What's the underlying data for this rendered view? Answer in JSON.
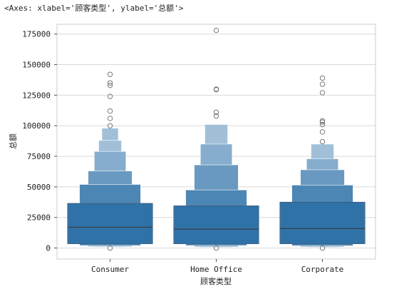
{
  "output_repr": "<Axes: xlabel='顾客类型', ylabel='总额'>",
  "chart_data": {
    "type": "boxen",
    "xlabel": "顾客类型",
    "ylabel": "总额",
    "ylim": [
      -9000,
      183000
    ],
    "yticks": [
      0,
      25000,
      50000,
      75000,
      100000,
      125000,
      150000,
      175000
    ],
    "grid": "horizontal",
    "color": "#2f72a8",
    "categories": [
      {
        "name": "Consumer",
        "median": 17000,
        "levels": [
          {
            "low": 3500,
            "high": 36500
          },
          {
            "low": 2000,
            "high": 52000
          },
          {
            "low": 1200,
            "high": 63000
          },
          {
            "low": 700,
            "high": 79000
          },
          {
            "low": 400,
            "high": 88000
          },
          {
            "low": 200,
            "high": 98000
          }
        ],
        "outliers": [
          142000,
          135000,
          133000,
          124000,
          112000,
          106000,
          100000,
          0
        ]
      },
      {
        "name": "Home Office",
        "median": 15500,
        "levels": [
          {
            "low": 3500,
            "high": 34500
          },
          {
            "low": 2000,
            "high": 47500
          },
          {
            "low": 1000,
            "high": 68000
          },
          {
            "low": 600,
            "high": 85000
          },
          {
            "low": 300,
            "high": 101000
          }
        ],
        "outliers": [
          178000,
          130000,
          129500,
          111000,
          108000,
          0
        ]
      },
      {
        "name": "Corporate",
        "median": 16000,
        "levels": [
          {
            "low": 3500,
            "high": 37500
          },
          {
            "low": 1800,
            "high": 51500
          },
          {
            "low": 1000,
            "high": 64000
          },
          {
            "low": 600,
            "high": 73000
          },
          {
            "low": 300,
            "high": 85000
          }
        ],
        "outliers": [
          139000,
          134000,
          127000,
          104000,
          103000,
          101000,
          95000,
          87000,
          0
        ]
      }
    ]
  }
}
